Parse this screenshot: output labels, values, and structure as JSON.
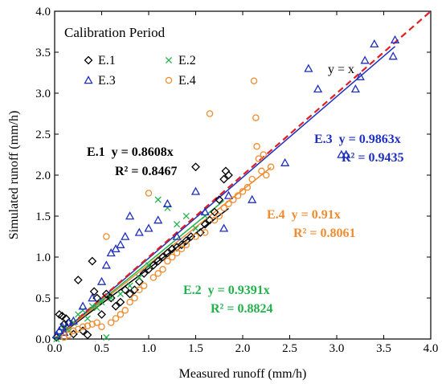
{
  "chart_data": {
    "type": "scatter",
    "title": "Calibration Period",
    "xlabel": "Measured runoff (mm/h)",
    "ylabel": "Simulated runoff (mm/h)",
    "xlim": [
      0,
      4
    ],
    "ylim": [
      0,
      4
    ],
    "xticks": [
      "0.0",
      "0.5",
      "1.0",
      "1.5",
      "2.0",
      "2.5",
      "3.0",
      "3.5",
      "4.0"
    ],
    "yticks": [
      "0.0",
      "0.5",
      "1.0",
      "1.5",
      "2.0",
      "2.5",
      "3.0",
      "3.5",
      "4.0"
    ],
    "grid": false,
    "legend_position": "top-left",
    "reference_line": {
      "label": "y = x",
      "color": "#e02020"
    },
    "series": [
      {
        "name": "E.1",
        "marker": "diamond",
        "color": "#000000",
        "slope": 0.8608,
        "equation": "y = 0.8608x",
        "r2_text": "R² = 0.8467",
        "fit_range": [
          0,
          1.85
        ],
        "points": [
          [
            0.02,
            0.02
          ],
          [
            0.05,
            0.3
          ],
          [
            0.08,
            0.28
          ],
          [
            0.1,
            0.18
          ],
          [
            0.12,
            0.25
          ],
          [
            0.15,
            0.2
          ],
          [
            0.2,
            0.06
          ],
          [
            0.25,
            0.72
          ],
          [
            0.3,
            0.1
          ],
          [
            0.35,
            0.05
          ],
          [
            0.4,
            0.95
          ],
          [
            0.42,
            0.58
          ],
          [
            0.45,
            0.5
          ],
          [
            0.5,
            0.3
          ],
          [
            0.55,
            0.55
          ],
          [
            0.6,
            0.5
          ],
          [
            0.65,
            0.4
          ],
          [
            0.7,
            0.45
          ],
          [
            0.75,
            0.6
          ],
          [
            0.8,
            0.55
          ],
          [
            0.85,
            0.6
          ],
          [
            0.9,
            0.7
          ],
          [
            0.95,
            0.8
          ],
          [
            1.0,
            0.85
          ],
          [
            1.05,
            0.9
          ],
          [
            1.1,
            0.95
          ],
          [
            1.15,
            1.0
          ],
          [
            1.2,
            1.05
          ],
          [
            1.25,
            1.1
          ],
          [
            1.3,
            1.12
          ],
          [
            1.35,
            1.15
          ],
          [
            1.4,
            1.2
          ],
          [
            1.45,
            1.25
          ],
          [
            1.5,
            2.1
          ],
          [
            1.55,
            1.3
          ],
          [
            1.6,
            1.4
          ],
          [
            1.65,
            1.45
          ],
          [
            1.7,
            1.55
          ],
          [
            1.75,
            1.7
          ],
          [
            1.8,
            1.95
          ],
          [
            1.82,
            2.05
          ],
          [
            1.85,
            2.0
          ]
        ]
      },
      {
        "name": "E.2",
        "marker": "cross",
        "color": "#22b14c",
        "slope": 0.9391,
        "equation": "y = 0.9391x",
        "r2_text": "R² = 0.8824",
        "fit_range": [
          0,
          1.8
        ],
        "points": [
          [
            0.02,
            0.0
          ],
          [
            0.05,
            0.05
          ],
          [
            0.1,
            0.12
          ],
          [
            0.15,
            0.1
          ],
          [
            0.2,
            0.2
          ],
          [
            0.25,
            0.3
          ],
          [
            0.3,
            0.35
          ],
          [
            0.35,
            0.25
          ],
          [
            0.4,
            0.4
          ],
          [
            0.45,
            0.38
          ],
          [
            0.5,
            0.45
          ],
          [
            0.55,
            0.02
          ],
          [
            0.6,
            0.5
          ],
          [
            0.7,
            0.55
          ],
          [
            0.8,
            0.65
          ],
          [
            0.9,
            0.75
          ],
          [
            1.0,
            0.9
          ],
          [
            1.1,
            1.7
          ],
          [
            1.2,
            1.6
          ],
          [
            1.3,
            1.4
          ],
          [
            1.4,
            1.5
          ],
          [
            1.5,
            1.35
          ],
          [
            1.6,
            1.5
          ]
        ]
      },
      {
        "name": "E.3",
        "marker": "triangle",
        "color": "#1f2fbf",
        "slope": 0.9863,
        "equation": "y = 0.9863x",
        "r2_text": "R² = 0.9435",
        "fit_range": [
          0,
          3.62
        ],
        "points": [
          [
            0.02,
            0.05
          ],
          [
            0.05,
            0.1
          ],
          [
            0.08,
            0.15
          ],
          [
            0.1,
            0.08
          ],
          [
            0.15,
            0.2
          ],
          [
            0.2,
            0.22
          ],
          [
            0.3,
            0.4
          ],
          [
            0.4,
            0.5
          ],
          [
            0.5,
            0.7
          ],
          [
            0.55,
            0.9
          ],
          [
            0.6,
            1.05
          ],
          [
            0.65,
            1.1
          ],
          [
            0.7,
            1.15
          ],
          [
            0.75,
            1.25
          ],
          [
            0.8,
            1.5
          ],
          [
            0.9,
            1.3
          ],
          [
            1.0,
            1.35
          ],
          [
            1.1,
            1.45
          ],
          [
            1.2,
            1.65
          ],
          [
            1.3,
            1.25
          ],
          [
            1.5,
            1.8
          ],
          [
            1.6,
            1.55
          ],
          [
            1.8,
            1.35
          ],
          [
            1.85,
            1.75
          ],
          [
            2.1,
            1.7
          ],
          [
            2.45,
            2.15
          ],
          [
            2.7,
            3.3
          ],
          [
            2.8,
            3.05
          ],
          [
            3.05,
            2.25
          ],
          [
            3.1,
            2.25
          ],
          [
            3.2,
            3.05
          ],
          [
            3.25,
            3.2
          ],
          [
            3.3,
            3.4
          ],
          [
            3.4,
            3.6
          ],
          [
            3.6,
            3.45
          ],
          [
            3.62,
            3.65
          ]
        ]
      },
      {
        "name": "E.4",
        "marker": "circle",
        "color": "#f08c30",
        "slope": 0.91,
        "equation": "y = 0.91x",
        "r2_text": "R² = 0.8061",
        "fit_range": [
          0,
          2.3
        ],
        "points": [
          [
            0.1,
            0.02
          ],
          [
            0.15,
            0.05
          ],
          [
            0.2,
            0.1
          ],
          [
            0.25,
            0.12
          ],
          [
            0.3,
            0.15
          ],
          [
            0.35,
            0.16
          ],
          [
            0.4,
            0.18
          ],
          [
            0.45,
            0.2
          ],
          [
            0.5,
            0.15
          ],
          [
            0.55,
            1.25
          ],
          [
            0.6,
            0.2
          ],
          [
            0.65,
            0.25
          ],
          [
            0.7,
            0.3
          ],
          [
            0.75,
            0.35
          ],
          [
            0.8,
            0.45
          ],
          [
            0.85,
            0.5
          ],
          [
            0.9,
            0.6
          ],
          [
            0.95,
            0.65
          ],
          [
            1.0,
            1.78
          ],
          [
            1.05,
            0.75
          ],
          [
            1.1,
            0.8
          ],
          [
            1.15,
            0.85
          ],
          [
            1.2,
            0.95
          ],
          [
            1.25,
            1.0
          ],
          [
            1.3,
            1.05
          ],
          [
            1.35,
            1.1
          ],
          [
            1.4,
            1.15
          ],
          [
            1.5,
            1.25
          ],
          [
            1.6,
            1.3
          ],
          [
            1.65,
            2.75
          ],
          [
            1.7,
            1.45
          ],
          [
            1.75,
            1.5
          ],
          [
            1.8,
            1.6
          ],
          [
            1.85,
            1.65
          ],
          [
            1.9,
            1.7
          ],
          [
            1.95,
            1.75
          ],
          [
            2.0,
            1.8
          ],
          [
            2.05,
            1.85
          ],
          [
            2.1,
            1.95
          ],
          [
            2.12,
            3.15
          ],
          [
            2.14,
            2.7
          ],
          [
            2.15,
            2.35
          ],
          [
            2.17,
            2.2
          ],
          [
            2.2,
            2.05
          ],
          [
            2.22,
            2.25
          ],
          [
            2.25,
            2.0
          ],
          [
            2.3,
            2.1
          ]
        ]
      }
    ]
  }
}
